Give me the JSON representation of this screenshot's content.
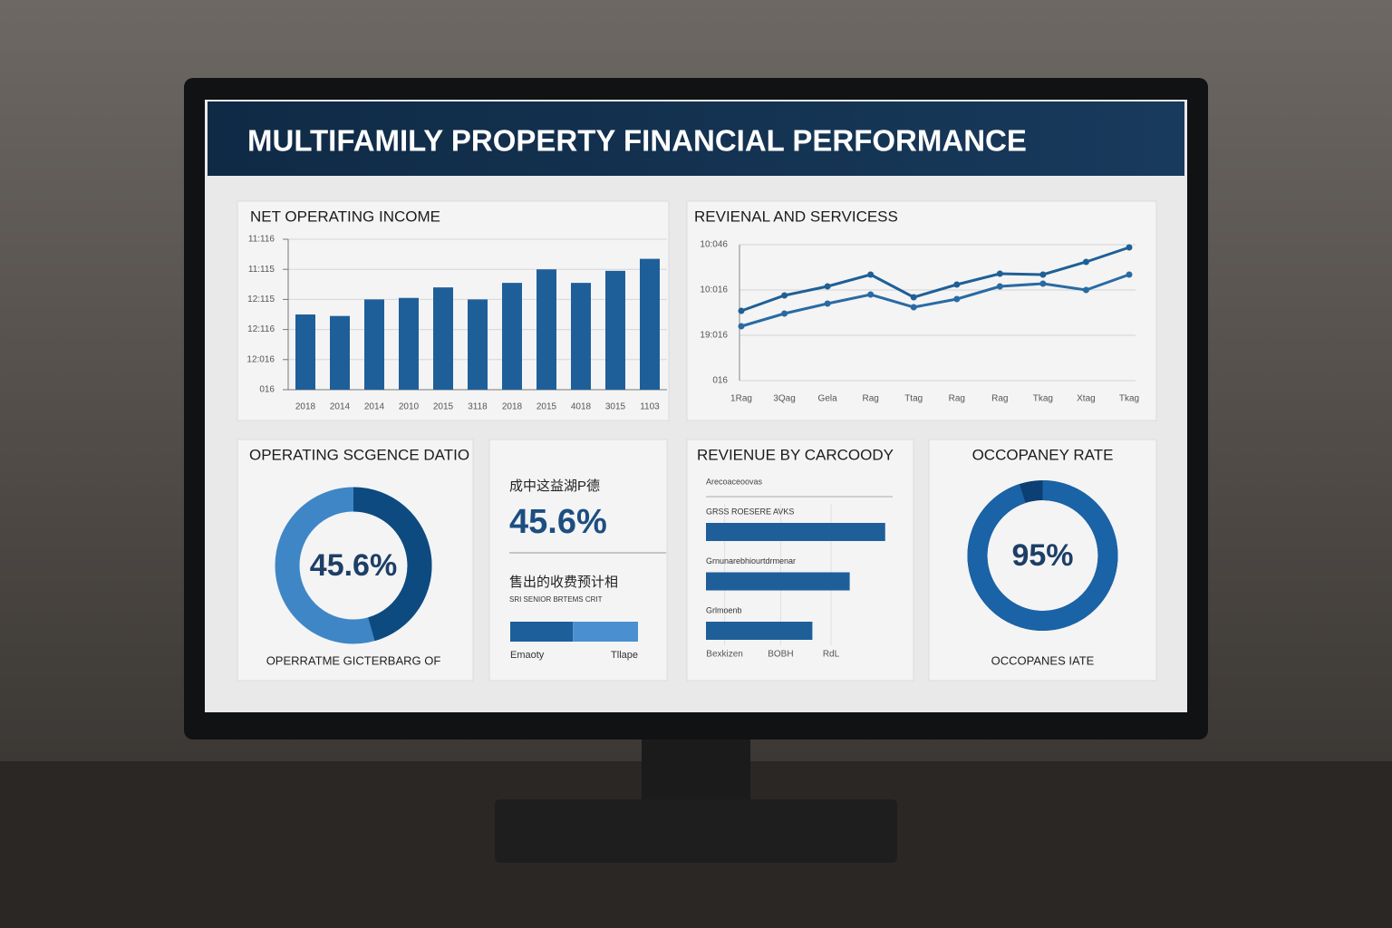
{
  "header": {
    "title": "MULTIFAMILY PROPERTY FINANCIAL PERFORMANCE"
  },
  "chart_data": [
    {
      "type": "bar",
      "title": "NET OPERATING INCOME",
      "categories": [
        "2018",
        "2014",
        "2014",
        "2010",
        "2015",
        "3118",
        "2018",
        "2015",
        "4018",
        "3015",
        "1103"
      ],
      "values": [
        2.5,
        2.45,
        3.0,
        3.05,
        3.4,
        3.0,
        3.55,
        4.0,
        3.55,
        3.95,
        4.35
      ],
      "color": "#1f5f99",
      "ylim": [
        0,
        5
      ],
      "yticks": [
        {
          "value": 0,
          "label": "016"
        },
        {
          "value": 1,
          "label": "12:016"
        },
        {
          "value": 2,
          "label": "12:116"
        },
        {
          "value": 3,
          "label": "12:115"
        },
        {
          "value": 4,
          "label": "11:115"
        },
        {
          "value": 5,
          "label": "11:116"
        }
      ],
      "grid": true
    },
    {
      "type": "line",
      "title": "REVIENAL AND SERVICESS",
      "categories": [
        "1Rag",
        "3Qag",
        "Gela",
        "Rag",
        "Ttag",
        "Rag",
        "Rag",
        "Tkag",
        "Xtag",
        "Tkag"
      ],
      "series": [
        {
          "color": "#1f5f96",
          "values": [
            1.54,
            1.88,
            2.08,
            2.34,
            1.84,
            2.12,
            2.36,
            2.34,
            2.62,
            2.94
          ]
        },
        {
          "color": "#2a6aa3",
          "values": [
            1.2,
            1.48,
            1.7,
            1.9,
            1.62,
            1.8,
            2.08,
            2.14,
            2.0,
            2.34
          ]
        }
      ],
      "ylim": [
        0,
        3
      ],
      "yticks": [
        {
          "value": 0,
          "label": "016"
        },
        {
          "value": 1,
          "label": "19:016"
        },
        {
          "value": 2,
          "label": "10:016"
        },
        {
          "value": 3,
          "label": "10:046"
        }
      ],
      "grid": true
    },
    {
      "type": "donut",
      "title": "OPERATING SCGENCE DATIO",
      "values": [
        45.6
      ],
      "value_labels": [
        "45.6%"
      ],
      "caption": "OPERRATME GICTERBARG OF",
      "colors": [
        "#0d4a80",
        "#3f86c6"
      ]
    },
    {
      "type": "stackedbar",
      "label": "成中这益湖P德",
      "kpi": "45.6%",
      "sublabel": "售出的收费预计相",
      "note": "SRI SENIOR BRTEMS CRIT",
      "series": [
        {
          "name": "Emaoty",
          "color": "#1d5f9b",
          "values": [
            49
          ]
        },
        {
          "name": "Tllape",
          "color": "#4a90d0",
          "values": [
            51
          ]
        }
      ],
      "xlim": [
        0,
        100
      ]
    },
    {
      "type": "hbar",
      "title": "REVIENUE BY CARCOODY",
      "subtitle": "Arecoaceoovas",
      "categories": [
        "GRSS ROESERE AVKS",
        "Grnunarebhiourtdrmenar",
        "Grlmoenb"
      ],
      "values": [
        96,
        77,
        57
      ],
      "color": "#1f5f99",
      "xlim": [
        0,
        100
      ],
      "xticks": [
        {
          "value": 10,
          "label": "Bexkizen"
        },
        {
          "value": 40,
          "label": "BOBH"
        },
        {
          "value": 67,
          "label": "RdL"
        }
      ]
    },
    {
      "type": "donut",
      "title": "OCCOPANEY RATE",
      "values": [
        95
      ],
      "value_labels": [
        "95%"
      ],
      "caption": "OCCOPANES IATE",
      "colors": [
        "#1a63a6",
        "#0c3f73"
      ]
    }
  ]
}
